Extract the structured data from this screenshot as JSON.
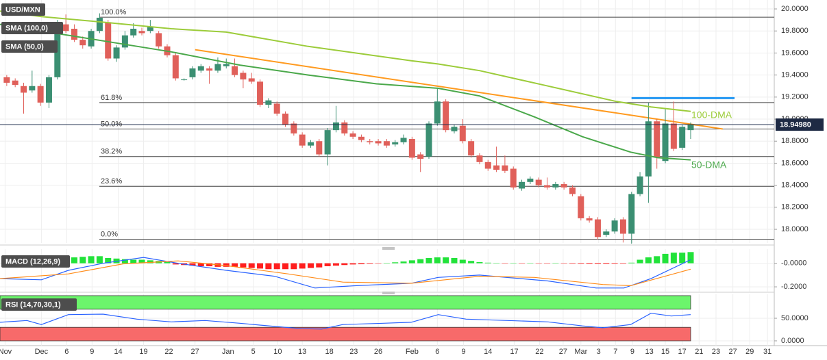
{
  "chart_data": [
    {
      "type": "candlestick",
      "title": "USD/MXN",
      "open": [
        19.38,
        19.35,
        19.3,
        19.26,
        19.3,
        19.15,
        19.38,
        19.86,
        19.82,
        19.72,
        19.66,
        19.8,
        19.88,
        19.55,
        19.65,
        19.76,
        19.8,
        19.8,
        19.78,
        19.66,
        19.58,
        19.36,
        19.38,
        19.44,
        19.46,
        19.44,
        19.48,
        19.48,
        19.42,
        19.37,
        19.34,
        19.13,
        19.14,
        19.05,
        18.96,
        18.86,
        18.76,
        18.8,
        18.68,
        18.9,
        18.97,
        18.87,
        18.84,
        18.8,
        18.8,
        18.8,
        18.77,
        18.79,
        18.82,
        18.68,
        18.66,
        18.96,
        19.16,
        18.89,
        18.94,
        18.8,
        18.67,
        18.61,
        18.58,
        18.58,
        18.55,
        18.37,
        18.43,
        18.45,
        18.4,
        18.38,
        18.41,
        18.38,
        18.3,
        18.1,
        18.09,
        17.95,
        17.98,
        18.09,
        17.96,
        18.32,
        18.48,
        18.98,
        18.62,
        18.96,
        18.74,
        18.9
      ],
      "high": [
        19.4,
        19.37,
        19.33,
        19.44,
        19.32,
        19.4,
        19.9,
        19.95,
        19.86,
        19.75,
        19.82,
        19.96,
        19.9,
        19.67,
        19.8,
        19.87,
        19.83,
        19.9,
        19.8,
        19.68,
        19.6,
        19.37,
        19.48,
        19.5,
        19.48,
        19.56,
        19.55,
        19.55,
        19.44,
        19.42,
        19.36,
        19.19,
        19.16,
        19.07,
        18.98,
        18.88,
        18.81,
        18.82,
        18.92,
        19.12,
        18.99,
        18.89,
        18.86,
        18.82,
        18.82,
        18.82,
        18.81,
        18.86,
        18.84,
        18.7,
        18.98,
        19.28,
        19.18,
        18.95,
        19.0,
        18.82,
        18.69,
        18.63,
        18.75,
        18.67,
        18.57,
        18.45,
        18.48,
        18.47,
        18.47,
        18.43,
        18.43,
        18.4,
        18.32,
        18.12,
        18.11,
        18.0,
        18.1,
        18.11,
        18.34,
        18.52,
        19.15,
        19.0,
        19.1,
        19.16,
        18.95,
        18.97
      ],
      "low": [
        19.3,
        19.29,
        19.05,
        19.24,
        19.12,
        19.1,
        19.36,
        19.78,
        19.7,
        19.64,
        19.64,
        19.78,
        19.53,
        19.52,
        19.63,
        19.74,
        19.76,
        19.78,
        19.64,
        19.56,
        19.35,
        19.35,
        19.36,
        19.42,
        19.32,
        19.42,
        19.46,
        19.38,
        19.28,
        19.32,
        19.11,
        19.1,
        19.03,
        18.93,
        18.85,
        18.74,
        18.74,
        18.66,
        18.58,
        18.88,
        18.85,
        18.82,
        18.79,
        18.77,
        18.76,
        18.74,
        18.75,
        18.77,
        18.63,
        18.52,
        18.64,
        18.94,
        18.88,
        18.87,
        18.78,
        18.65,
        18.59,
        18.53,
        18.52,
        18.51,
        18.36,
        18.35,
        18.41,
        18.38,
        18.36,
        18.36,
        18.36,
        18.3,
        18.08,
        18.06,
        17.91,
        17.93,
        17.96,
        17.88,
        17.87,
        18.3,
        18.24,
        18.55,
        18.6,
        18.71,
        18.72,
        18.82
      ],
      "close": [
        19.33,
        19.31,
        19.24,
        19.3,
        19.15,
        19.38,
        19.86,
        19.8,
        19.72,
        19.67,
        19.8,
        19.92,
        19.55,
        19.65,
        19.76,
        19.82,
        19.78,
        19.84,
        19.66,
        19.58,
        19.37,
        19.36,
        19.46,
        19.48,
        19.44,
        19.5,
        19.5,
        19.4,
        19.36,
        19.34,
        19.13,
        19.17,
        19.05,
        18.95,
        18.87,
        18.76,
        18.79,
        18.68,
        18.9,
        18.97,
        18.87,
        18.84,
        18.81,
        18.79,
        18.78,
        18.76,
        18.79,
        18.83,
        18.65,
        18.64,
        18.96,
        19.16,
        18.9,
        18.93,
        18.8,
        18.67,
        18.61,
        18.55,
        18.54,
        18.53,
        18.38,
        18.43,
        18.46,
        18.4,
        18.38,
        18.41,
        18.38,
        18.32,
        18.1,
        18.08,
        17.93,
        17.98,
        18.08,
        17.96,
        18.32,
        18.48,
        18.98,
        18.65,
        18.96,
        18.73,
        18.93,
        18.95
      ],
      "up_color": "#3b8f72",
      "down_color": "#e0605a",
      "overlays": [
        {
          "name": "SMA (100,0)",
          "label": "100-DMA",
          "color": "#9ccc3a",
          "x": [
            -0.8,
            4.1,
            11.4,
            19.5,
            26.0,
            35.7,
            47.9,
            51.1,
            56.0,
            64.1,
            72.2,
            76.3,
            81.0
          ],
          "values": [
            19.98,
            19.93,
            19.88,
            19.82,
            19.79,
            19.66,
            19.53,
            19.5,
            19.44,
            19.3,
            19.16,
            19.11,
            19.07
          ]
        },
        {
          "name": "SMA (50,0)",
          "label": "50-DMA",
          "color": "#4aa84a",
          "x": [
            -0.8,
            4.1,
            11.4,
            19.5,
            27.6,
            35.7,
            43.8,
            51.1,
            56.0,
            62.5,
            68.2,
            73.9,
            77.1,
            81.0
          ],
          "values": [
            19.86,
            19.8,
            19.71,
            19.61,
            19.49,
            19.4,
            19.32,
            19.28,
            19.21,
            19.02,
            18.84,
            18.7,
            18.65,
            18.63
          ]
        }
      ],
      "trendlines": [
        {
          "color": "#ff9a1f",
          "x": [
            22.3,
            84.8
          ],
          "values": [
            19.63,
            18.91
          ]
        },
        {
          "color": "#2196f3",
          "x": [
            74.0,
            86.2
          ],
          "values": [
            19.19,
            19.19
          ]
        }
      ],
      "fib_levels": [
        {
          "label": "100.0%",
          "value": 19.925
        },
        {
          "label": "61.8%",
          "value": 19.15
        },
        {
          "label": "50.0%",
          "value": 18.91
        },
        {
          "label": "38.2%",
          "value": 18.66
        },
        {
          "label": "23.6%",
          "value": 18.39
        },
        {
          "label": "0.0%",
          "value": 17.91
        }
      ],
      "last_price": {
        "value": 18.9498,
        "label": "18.94980"
      },
      "ylim": [
        17.876,
        20.081
      ],
      "yticks": [
        {
          "value": 20.0,
          "label": "20.0000"
        },
        {
          "value": 19.8,
          "label": "19.8000"
        },
        {
          "value": 19.6,
          "label": "19.6000"
        },
        {
          "value": 19.4,
          "label": "19.4000"
        },
        {
          "value": 19.2,
          "label": "19.2000"
        },
        {
          "value": 19.0,
          "label": "19.0000"
        },
        {
          "value": 18.8,
          "label": "18.8000"
        },
        {
          "value": 18.6,
          "label": "18.6000"
        },
        {
          "value": 18.4,
          "label": "18.4000"
        },
        {
          "value": 18.2,
          "label": "18.2000"
        },
        {
          "value": 18.0,
          "label": "18.0000"
        }
      ],
      "xlim": [
        -0.8,
        90.9
      ],
      "xticks": [
        {
          "value": -0.2,
          "label": "Nov"
        },
        {
          "value": 4.1,
          "label": "Dec"
        },
        {
          "value": 7.1,
          "label": "6"
        },
        {
          "value": 10.1,
          "label": "9"
        },
        {
          "value": 13.2,
          "label": "14"
        },
        {
          "value": 16.2,
          "label": "19"
        },
        {
          "value": 19.2,
          "label": "22"
        },
        {
          "value": 22.3,
          "label": "27"
        },
        {
          "value": 26.2,
          "label": "Jan"
        },
        {
          "value": 29.2,
          "label": "5"
        },
        {
          "value": 32.1,
          "label": "10"
        },
        {
          "value": 35.0,
          "label": "13"
        },
        {
          "value": 38.2,
          "label": "18"
        },
        {
          "value": 41.1,
          "label": "23"
        },
        {
          "value": 44.0,
          "label": "26"
        },
        {
          "value": 48.0,
          "label": "Feb"
        },
        {
          "value": 51.0,
          "label": "6"
        },
        {
          "value": 54.1,
          "label": "9"
        },
        {
          "value": 57.0,
          "label": "14"
        },
        {
          "value": 60.1,
          "label": "17"
        },
        {
          "value": 63.1,
          "label": "22"
        },
        {
          "value": 65.9,
          "label": "27"
        },
        {
          "value": 68.0,
          "label": "Mar"
        },
        {
          "value": 70.1,
          "label": "3"
        },
        {
          "value": 72.1,
          "label": "7"
        },
        {
          "value": 74.1,
          "label": "9"
        },
        {
          "value": 76.1,
          "label": "13"
        },
        {
          "value": 78.0,
          "label": "15"
        },
        {
          "value": 80.0,
          "label": "17"
        },
        {
          "value": 82.0,
          "label": "21"
        },
        {
          "value": 84.0,
          "label": "23"
        },
        {
          "value": 86.0,
          "label": "27"
        },
        {
          "value": 88.0,
          "label": "29"
        },
        {
          "value": 90.1,
          "label": "31"
        }
      ],
      "grid": true
    },
    {
      "type": "macd",
      "title": "MACD (12,26,9)",
      "histogram": [
        0.005,
        0.005,
        0.005,
        0.005,
        0.005,
        0.005,
        0.02,
        0.04,
        0.05,
        0.055,
        0.06,
        0.06,
        0.045,
        0.04,
        0.035,
        0.03,
        0.03,
        0.025,
        0.02,
        0.01,
        -0.01,
        -0.015,
        -0.02,
        -0.025,
        -0.025,
        -0.03,
        -0.03,
        -0.03,
        -0.035,
        -0.04,
        -0.045,
        -0.05,
        -0.05,
        -0.05,
        -0.05,
        -0.045,
        -0.04,
        -0.035,
        -0.025,
        -0.02,
        -0.015,
        -0.01,
        -0.008,
        -0.005,
        -0.003,
        0.003,
        0.008,
        0.015,
        0.025,
        0.035,
        0.045,
        0.05,
        0.05,
        0.045,
        0.03,
        0.02,
        0.01,
        0.005,
        0.002,
        -0.002,
        0.002,
        -0.002,
        0.002,
        -0.002,
        -0.003,
        0.002,
        -0.003,
        -0.004,
        -0.005,
        -0.006,
        -0.006,
        -0.006,
        -0.005,
        -0.004,
        0.005,
        0.03,
        0.05,
        0.06,
        0.08,
        0.09,
        0.09,
        0.095
      ],
      "up_color": "#22e23a",
      "down_color": "#ff1e1e",
      "series": [
        {
          "color": "#2962ff",
          "x": [
            -0.8,
            4.1,
            7.3,
            11.4,
            16.2,
            20.3,
            26.0,
            31.7,
            36.5,
            41.4,
            47.9,
            51.1,
            56.0,
            64.1,
            69.8,
            73.1,
            76.3,
            81.0
          ],
          "values": [
            -0.13,
            -0.14,
            -0.06,
            0.0,
            0.05,
            0.0,
            -0.06,
            -0.11,
            -0.21,
            -0.19,
            -0.17,
            -0.12,
            -0.1,
            -0.15,
            -0.21,
            -0.21,
            -0.13,
            0.03
          ]
        },
        {
          "color": "#ff8c1a",
          "x": [
            -0.8,
            7.3,
            13.8,
            20.3,
            26.0,
            33.3,
            39.8,
            47.9,
            56.0,
            62.5,
            70.6,
            73.9,
            81.0
          ],
          "values": [
            -0.13,
            -0.09,
            -0.005,
            0.02,
            -0.02,
            -0.09,
            -0.16,
            -0.17,
            -0.11,
            -0.12,
            -0.18,
            -0.19,
            -0.05
          ]
        }
      ],
      "ylim": [
        -0.24,
        0.12
      ],
      "yticks": [
        {
          "value": 0,
          "label": "-0.0000"
        },
        {
          "value": -0.2,
          "label": "-0.2000"
        }
      ]
    },
    {
      "type": "rsi",
      "title": "RSI (14,70,30,1)",
      "series": [
        {
          "color": "#2962ff",
          "x": [
            -0.8,
            2.4,
            4.1,
            7.3,
            11.4,
            15.4,
            19.5,
            23.5,
            27.6,
            31.7,
            34.9,
            37.3,
            39.8,
            44.6,
            47.9,
            51.1,
            54.4,
            59.3,
            64.1,
            68.2,
            70.6,
            73.9,
            76.3,
            78.7,
            81.0
          ],
          "values": [
            41,
            45,
            36,
            58,
            59,
            48,
            42,
            45,
            39,
            32,
            27,
            26,
            36,
            39,
            41,
            58,
            48,
            45,
            42,
            33,
            29,
            36,
            61,
            55,
            58
          ]
        }
      ],
      "bands": [
        {
          "from": 70,
          "to": 100,
          "color": "#6cf56c"
        },
        {
          "from": 0,
          "to": 30,
          "color": "#f76a6a"
        }
      ],
      "ylim": [
        -10.6,
        103
      ],
      "yticks": [
        {
          "value": 50,
          "label": "50.0000"
        },
        {
          "value": 0,
          "label": "0.0000"
        }
      ]
    }
  ]
}
